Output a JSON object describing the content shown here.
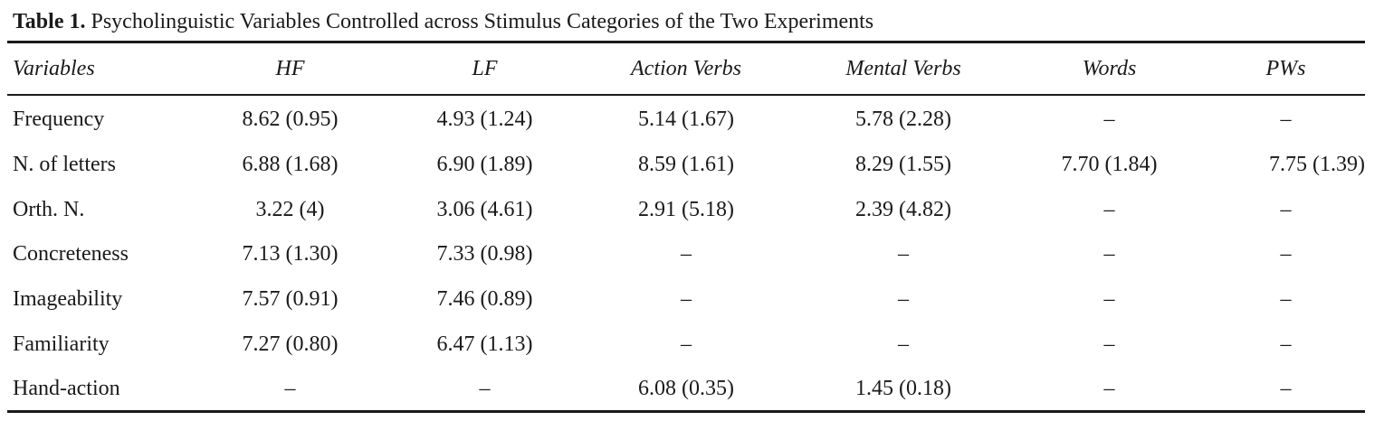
{
  "caption": {
    "label": "Table 1.",
    "text": "Psycholinguistic Variables Controlled across Stimulus Categories of the Two Experiments"
  },
  "table": {
    "headers": [
      "Variables",
      "HF",
      "LF",
      "Action Verbs",
      "Mental Verbs",
      "Words",
      "PWs"
    ],
    "rows": [
      [
        "Frequency",
        "8.62 (0.95)",
        "4.93 (1.24)",
        "5.14 (1.67)",
        "5.78 (2.28)",
        "–",
        "–"
      ],
      [
        "N. of letters",
        "6.88 (1.68)",
        "6.90 (1.89)",
        "8.59 (1.61)",
        "8.29 (1.55)",
        "7.70 (1.84)",
        "7.75 (1.39)"
      ],
      [
        "Orth. N.",
        "3.22 (4)",
        "3.06 (4.61)",
        "2.91 (5.18)",
        "2.39 (4.82)",
        "–",
        "–"
      ],
      [
        "Concreteness",
        "7.13 (1.30)",
        "7.33 (0.98)",
        "–",
        "–",
        "–",
        "–"
      ],
      [
        "Imageability",
        "7.57 (0.91)",
        "7.46 (0.89)",
        "–",
        "–",
        "–",
        "–"
      ],
      [
        "Familiarity",
        "7.27 (0.80)",
        "6.47 (1.13)",
        "–",
        "–",
        "–",
        "–"
      ],
      [
        "Hand-action",
        "–",
        "–",
        "6.08 (0.35)",
        "1.45 (0.18)",
        "–",
        "–"
      ]
    ]
  }
}
